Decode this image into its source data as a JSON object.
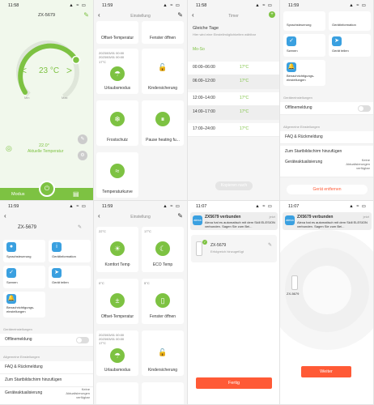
{
  "p1": {
    "time": "11:58",
    "icons": "▲ ≈ ▭",
    "title": "ZX-5679",
    "left_arrow": "<",
    "right_arrow": ">",
    "setpoint": "23 °C",
    "min": "Min",
    "max": "Max",
    "measured": "22.0°",
    "measured_label": "Aktuelle Temperatur",
    "tab_modus": "Modus"
  },
  "p2": {
    "time": "11:59",
    "nav_title": "Einstellung",
    "cards": [
      {
        "label": "Offset-Temperatur",
        "icon": "±",
        "date": "",
        "temp": ""
      },
      {
        "label": "Fenster öffnen",
        "icon": "▯",
        "date": "",
        "temp": ""
      },
      {
        "label": "Urlaubsmodus",
        "icon": "☂",
        "date": "2023/03/01 00:00\n2023/03/01 00:00",
        "temp": "17°C"
      },
      {
        "label": "Kindersicherung",
        "icon": "🔓",
        "date": "",
        "temp": ""
      },
      {
        "label": "Frostschutz",
        "icon": "❄",
        "date": "",
        "temp": ""
      },
      {
        "label": "Pause heating fu...",
        "icon": "⏸",
        "date": "",
        "temp": ""
      },
      {
        "label": "Temperaturkurve",
        "icon": "≈",
        "date": "",
        "temp": ""
      }
    ]
  },
  "p3": {
    "time": "11:58",
    "nav_title": "Timer",
    "heading": "Gleiche Tage",
    "subtitle": "Hier wird eine Einstellmöglichkeiten wählbar",
    "days": "Mo-So",
    "rows": [
      {
        "range": "00:00–06:00",
        "temp": "17°C"
      },
      {
        "range": "06:00–12:00",
        "temp": "17°C"
      },
      {
        "range": "12:00–14:00",
        "temp": "17°C"
      },
      {
        "range": "14:00–17:00",
        "temp": "17°C"
      },
      {
        "range": "17:00–24:00",
        "temp": "17°C"
      }
    ],
    "button": "Kopieren nach"
  },
  "p4": {
    "time": "11:59",
    "tiles": [
      {
        "label": "Sprachsteuerung",
        "color": "#3aa0e0",
        "icon": "●"
      },
      {
        "label": "Gerätinformation",
        "color": "#3aa0e0",
        "icon": "i"
      },
      {
        "label": "Szenen",
        "color": "#3aa0e0",
        "icon": "✓"
      },
      {
        "label": "Gerät teilen",
        "color": "#3aa0e0",
        "icon": "➤"
      },
      {
        "label": "Benachrichtigungs-\neinstellungen",
        "color": "#3aa0e0",
        "icon": "🔔"
      }
    ],
    "section1": "Geräteeinstellungen",
    "offline": "Offlinemeldung",
    "section2": "Allgemeine Einstellungen",
    "faq": "FAQ & Rückmeldung",
    "home": "Zum Startbildschirm hinzufügen",
    "fw": "Geräteaktualisierung",
    "fw_value": "Keine\nAktualisierungen\nverfügbar",
    "remove": "Gerät entfernen"
  },
  "p5": {
    "time": "11:59",
    "title": "ZX-5679",
    "tiles": [
      {
        "label": "Sprachsteuerung",
        "icon": "●"
      },
      {
        "label": "Gerätinformation",
        "icon": "i"
      },
      {
        "label": "Szenen",
        "icon": "✓"
      },
      {
        "label": "Gerät teilen",
        "icon": "➤"
      },
      {
        "label": "Benachrichtigungs-\neinstellungen",
        "icon": "🔔"
      }
    ],
    "section1": "Geräteeinstellungen",
    "offline": "Offlinemeldung",
    "section2": "Allgemeine Einstellungen",
    "faq": "FAQ & Rückmeldung",
    "home": "Zum Startbildschirm hinzufügen",
    "fw": "Geräteaktualisierung",
    "fw_value": "Keine\nAktualisierungen\nverfügbar"
  },
  "p6": {
    "time": "11:59",
    "nav_title": "Einstellung",
    "cards": [
      {
        "label": "Komfort Temp",
        "icon": "☀",
        "temp": "22°C"
      },
      {
        "label": "ECO Temp",
        "icon": "☾",
        "temp": "17°C"
      },
      {
        "label": "Offset-Temperatur",
        "icon": "±",
        "temp": "0°C"
      },
      {
        "label": "Fenster öffnen",
        "icon": "▯",
        "temp": "5°C"
      },
      {
        "label": "Urlaubsmodus",
        "icon": "☂",
        "temp": "2023/03/01 00:00\n2023/03/01 00:00\n17°C"
      },
      {
        "label": "Kindersicherung",
        "icon": "🔓",
        "temp": ""
      }
    ]
  },
  "p7": {
    "time": "11:07",
    "notif_title": "ZX5679 verbunden",
    "notif_time": "jetzt",
    "notif_body": "Alexa hat es automatisch mit dem Skill ELESION verbunden. Sagen Sie zum Bei...",
    "device": "ZX-5679",
    "device_sub": "Erfolgreich hinzugefügt",
    "button": "Fertig"
  },
  "p8": {
    "time": "11:07",
    "notif_title": "ZX5679 verbunden",
    "notif_time": "jetzt",
    "notif_body": "Alexa hat es automatisch mit dem Skill ELESION verbunden. Sagen Sie zum Bei...",
    "device": "ZX-5679",
    "button": "Weiter"
  }
}
